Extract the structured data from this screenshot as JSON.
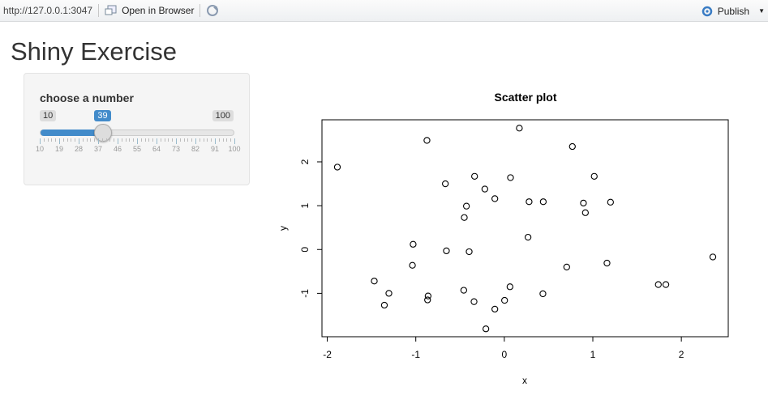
{
  "toolbar": {
    "url": "http://127.0.0.1:3047",
    "open_browser": "Open in Browser",
    "publish": "Publish"
  },
  "title": "Shiny Exercise",
  "slider": {
    "label": "choose a number",
    "min": 10,
    "max": 100,
    "value": 39,
    "min_label": "10",
    "max_label": "100",
    "value_label": "39",
    "grid_labels": [
      "10",
      "19",
      "28",
      "37",
      "46",
      "55",
      "64",
      "73",
      "82",
      "91",
      "100"
    ],
    "accent": "#428bca"
  },
  "chart_data": {
    "type": "scatter",
    "title": "Scatter plot",
    "xlabel": "x",
    "ylabel": "y",
    "xlim": [
      -2.06,
      2.53
    ],
    "ylim": [
      -1.99,
      2.96
    ],
    "xticks": [
      "-2",
      "-1",
      "0",
      "1",
      "2"
    ],
    "yticks": [
      "-1",
      "0",
      "1",
      "2"
    ],
    "x": [
      -1.886,
      -0.874,
      0.17,
      -0.666,
      -0.336,
      0.07,
      -0.22,
      -0.107,
      0.28,
      -0.428,
      -0.452,
      0.268,
      -1.03,
      -0.654,
      -0.397,
      -1.038,
      -1.469,
      0.064,
      -0.458,
      -1.304,
      -0.861,
      -0.867,
      -0.342,
      0.003,
      -1.355,
      -0.107,
      -0.208,
      0.769,
      1.016,
      0.44,
      0.894,
      1.2,
      0.916,
      0.705,
      1.16,
      2.356,
      1.74,
      1.825,
      0.436
    ],
    "y": [
      1.88,
      2.49,
      2.77,
      1.5,
      1.67,
      1.64,
      1.38,
      1.16,
      1.09,
      0.99,
      0.73,
      0.28,
      0.12,
      -0.03,
      -0.05,
      -0.36,
      -0.72,
      -0.85,
      -0.93,
      -1.0,
      -1.06,
      -1.15,
      -1.19,
      -1.16,
      -1.27,
      -1.36,
      -1.81,
      2.35,
      1.67,
      1.09,
      1.06,
      1.08,
      0.84,
      -0.4,
      -0.31,
      -0.17,
      -0.8,
      -0.8,
      -1.01
    ],
    "grid": false,
    "marker": "open-circle"
  }
}
